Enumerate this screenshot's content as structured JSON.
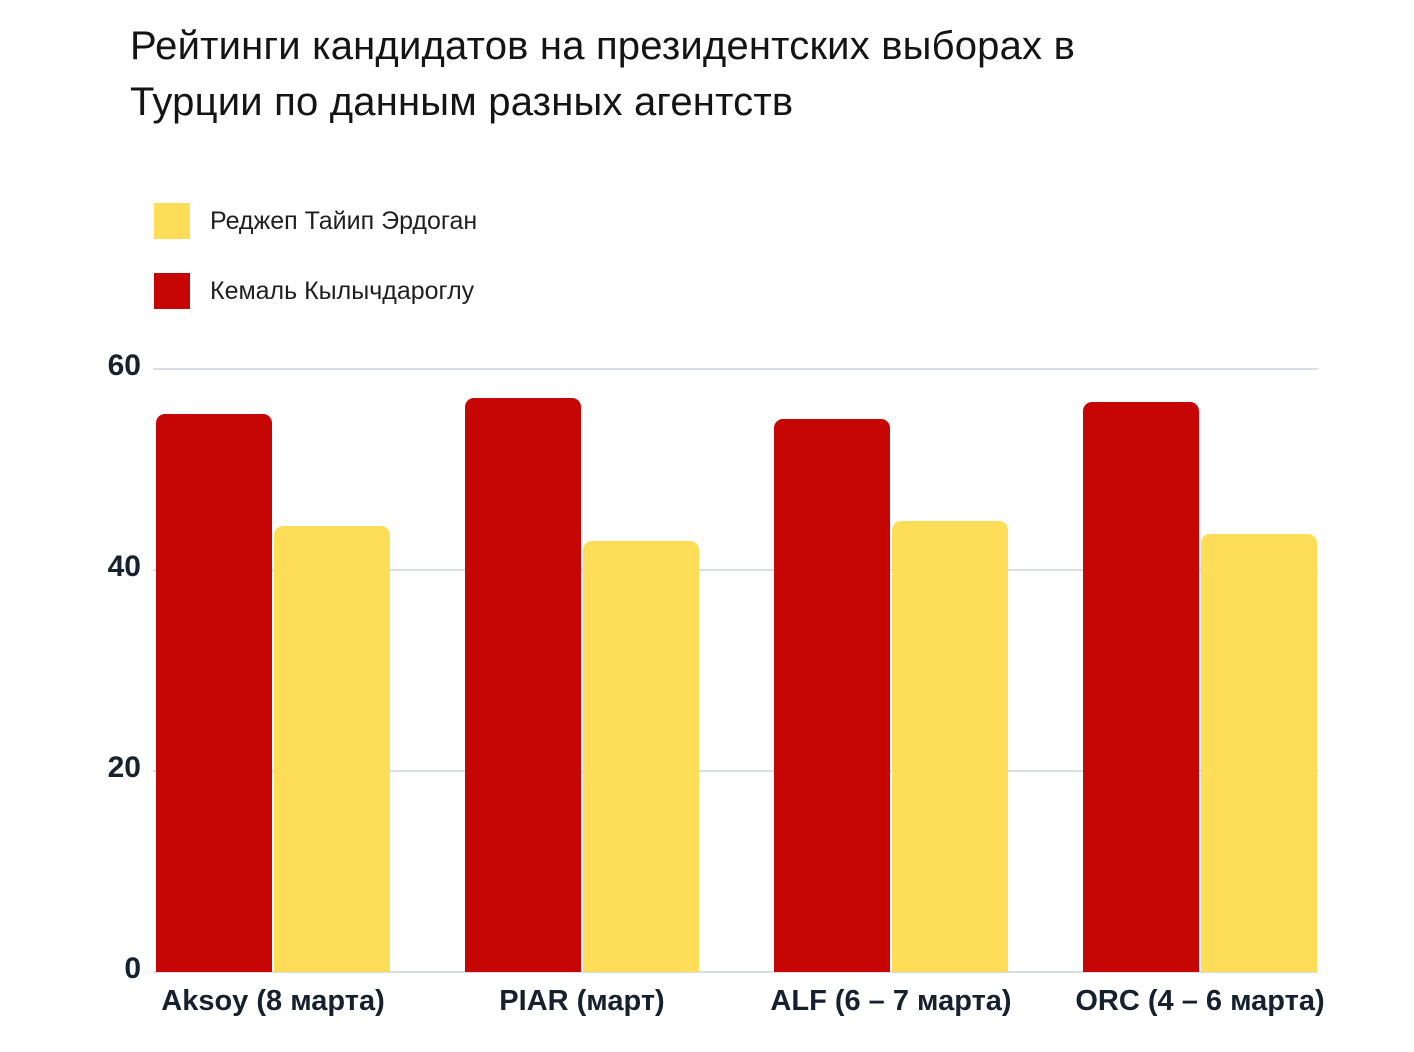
{
  "title": {
    "full": "Рейтинги кандидатов на президентских выборах в Турции по данным разных агентств",
    "lines": [
      "Рейтинги кандидатов на президентских выборах в",
      "Турции по данным разных агентств"
    ]
  },
  "legend": {
    "items": [
      {
        "label": "Реджеп Тайип Эрдоган",
        "color": "#fedd58"
      },
      {
        "label": "Кемаль Кылычдароглу",
        "color": "#c60505"
      }
    ]
  },
  "chart_data": {
    "type": "bar",
    "title": "Рейтинги кандидатов на президентских выборах в Турции по данным разных агентств",
    "categories": [
      "Aksoy (8 марта)",
      "PIAR (март)",
      "ALF (6 – 7 марта)",
      "ORC (4 – 6 марта)"
    ],
    "series": [
      {
        "name": "Кемаль Кылычдароглу",
        "color": "#c60505",
        "values": [
          55.5,
          57.1,
          55.0,
          56.7
        ]
      },
      {
        "name": "Реджеп Тайип Эрдоган",
        "color": "#fedd58",
        "values": [
          44.4,
          42.9,
          44.9,
          43.6
        ]
      }
    ],
    "xlabel": "",
    "ylabel": "",
    "yticks": [
      0,
      20,
      40,
      60
    ],
    "ylim": [
      0,
      60
    ],
    "grid": true,
    "legend_position": "top-left",
    "bar_group_order": [
      "Кемаль Кылычдароглу",
      "Реджеп Тайип Эрдоган"
    ]
  },
  "colors": {
    "bar_red": "#c60505",
    "bar_yellow": "#fedd58",
    "gridline": "#d9dee4",
    "tick_text": "#16222e",
    "title_text": "#141414",
    "background": "#ffffff"
  }
}
